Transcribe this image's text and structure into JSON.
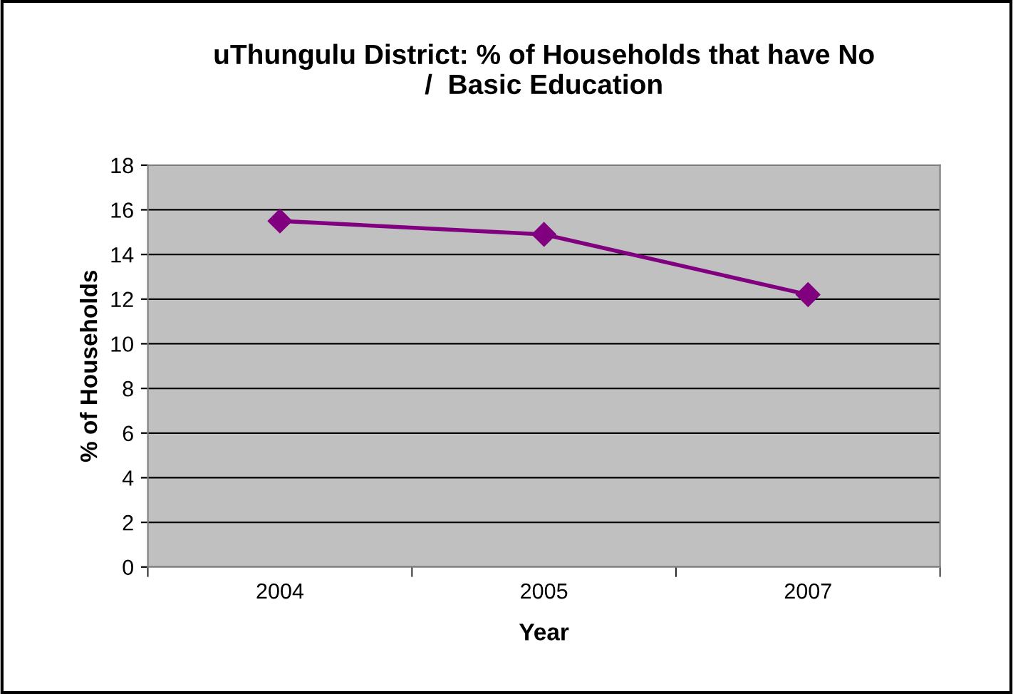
{
  "chart_data": {
    "type": "line",
    "title": "uThungulu District: % of Households that have No\n/  Basic Education",
    "xlabel": "Year",
    "ylabel": "% of Households",
    "categories": [
      "2004",
      "2005",
      "2007"
    ],
    "series": [
      {
        "color": "#800080",
        "values": [
          15.5,
          14.9,
          12.2
        ]
      }
    ],
    "ylim": [
      0,
      18
    ],
    "yticks": [
      0,
      2,
      4,
      6,
      8,
      10,
      12,
      14,
      16,
      18
    ],
    "grid": "y",
    "legend": false,
    "marker": "diamond",
    "line_style": "solid"
  }
}
